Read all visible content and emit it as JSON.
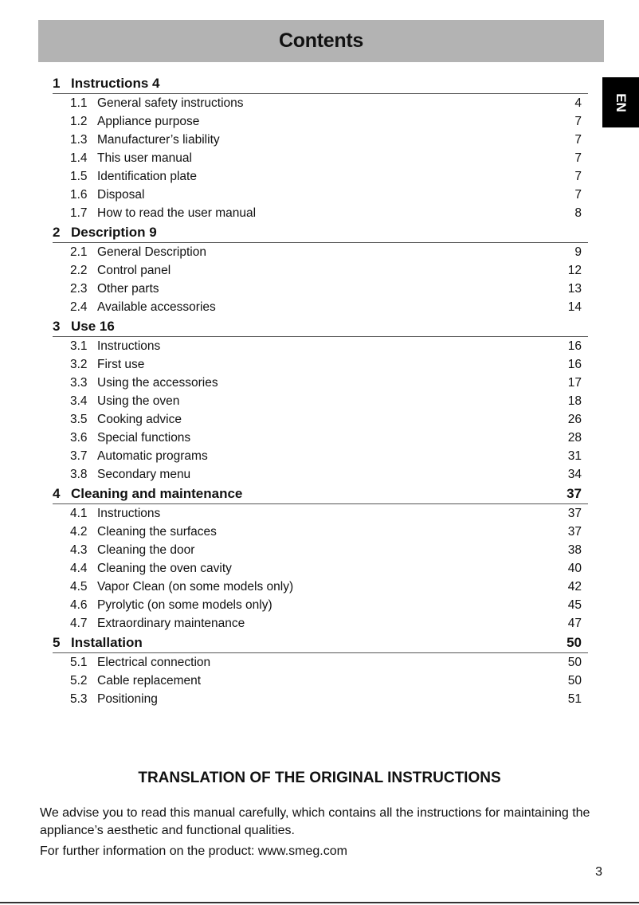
{
  "header": {
    "title": "Contents"
  },
  "language_tab": "EN",
  "sections": [
    {
      "num": "1",
      "title": "Instructions 4",
      "page": "",
      "items": [
        {
          "num": "1.1",
          "title": "General safety instructions",
          "page": "4"
        },
        {
          "num": "1.2",
          "title": "Appliance purpose",
          "page": "7"
        },
        {
          "num": "1.3",
          "title": "Manufacturer’s liability",
          "page": "7"
        },
        {
          "num": "1.4",
          "title": "This user manual",
          "page": "7"
        },
        {
          "num": "1.5",
          "title": "Identification plate",
          "page": "7"
        },
        {
          "num": "1.6",
          "title": "Disposal",
          "page": "7"
        },
        {
          "num": "1.7",
          "title": "How to read the user manual",
          "page": "8"
        }
      ]
    },
    {
      "num": "2",
      "title": "Description 9",
      "page": "",
      "items": [
        {
          "num": "2.1",
          "title": "General Description",
          "page": "9"
        },
        {
          "num": "2.2",
          "title": "Control panel",
          "page": "12"
        },
        {
          "num": "2.3",
          "title": "Other parts",
          "page": "13"
        },
        {
          "num": "2.4",
          "title": "Available accessories",
          "page": "14"
        }
      ]
    },
    {
      "num": "3",
      "title": "Use 16",
      "page": "",
      "items": [
        {
          "num": "3.1",
          "title": "Instructions",
          "page": "16"
        },
        {
          "num": "3.2",
          "title": "First use",
          "page": "16"
        },
        {
          "num": "3.3",
          "title": "Using the accessories",
          "page": "17"
        },
        {
          "num": "3.4",
          "title": "Using the oven",
          "page": "18"
        },
        {
          "num": "3.5",
          "title": "Cooking advice",
          "page": "26"
        },
        {
          "num": "3.6",
          "title": "Special functions",
          "page": "28"
        },
        {
          "num": "3.7",
          "title": "Automatic programs",
          "page": "31"
        },
        {
          "num": "3.8",
          "title": "Secondary menu",
          "page": "34"
        }
      ]
    },
    {
      "num": "4",
      "title": "Cleaning and maintenance",
      "page": "37",
      "items": [
        {
          "num": "4.1",
          "title": "Instructions",
          "page": "37"
        },
        {
          "num": "4.2",
          "title": "Cleaning the surfaces",
          "page": "37"
        },
        {
          "num": "4.3",
          "title": "Cleaning the door",
          "page": "38"
        },
        {
          "num": "4.4",
          "title": "Cleaning the oven cavity",
          "page": "40"
        },
        {
          "num": "4.5",
          "title": "Vapor Clean (on some models only)",
          "page": "42"
        },
        {
          "num": "4.6",
          "title": "Pyrolytic (on some models only)",
          "page": "45"
        },
        {
          "num": "4.7",
          "title": "Extraordinary maintenance",
          "page": "47"
        }
      ]
    },
    {
      "num": "5",
      "title": "Installation",
      "page": "50",
      "items": [
        {
          "num": "5.1",
          "title": "Electrical connection",
          "page": "50"
        },
        {
          "num": "5.2",
          "title": "Cable replacement",
          "page": "50"
        },
        {
          "num": "5.3",
          "title": "Positioning",
          "page": "51"
        }
      ]
    }
  ],
  "footer": {
    "heading": "TRANSLATION OF THE ORIGINAL INSTRUCTIONS",
    "paragraph1": "We advise you to read this manual carefully, which contains all the instructions for maintaining the appliance’s aesthetic and functional qualities.",
    "paragraph2": "For further information on the product: www.smeg.com",
    "page_number": "3"
  }
}
